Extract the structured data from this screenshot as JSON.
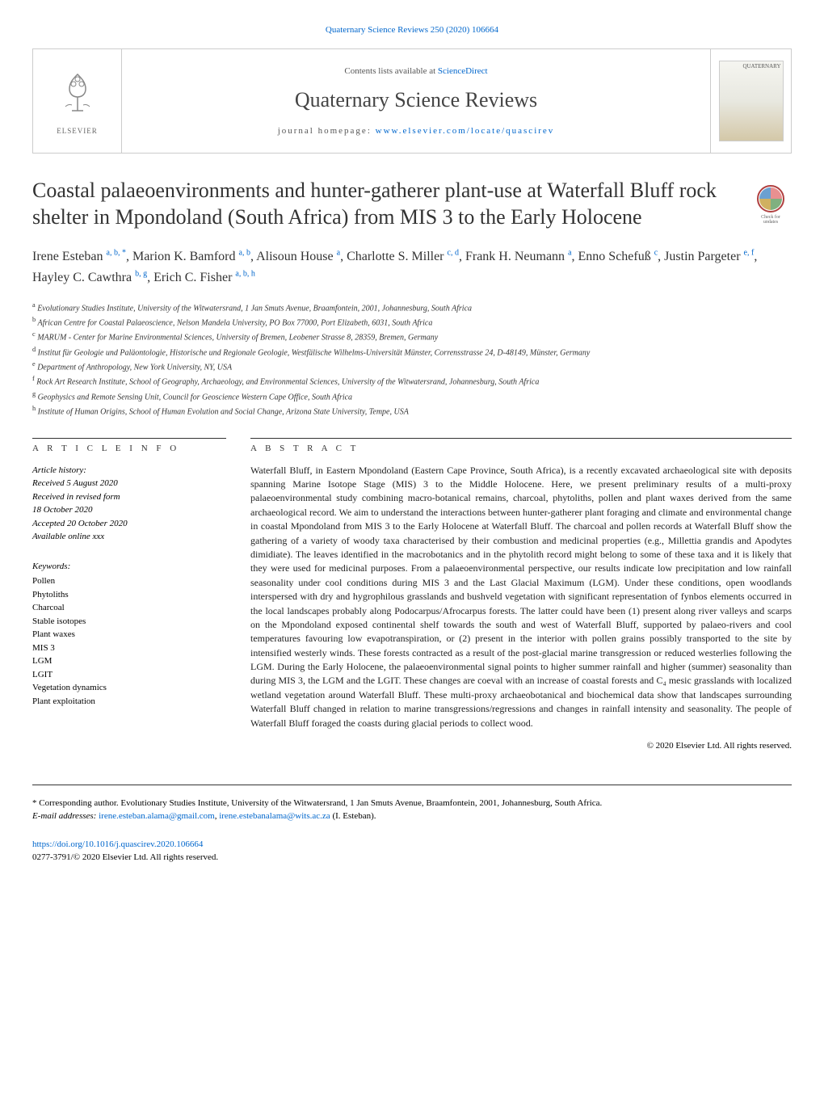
{
  "header": {
    "citation_link": "Quaternary Science Reviews 250 (2020) 106664",
    "contents_prefix": "Contents lists available at ",
    "contents_link": "ScienceDirect",
    "journal_title": "Quaternary Science Reviews",
    "homepage_prefix": "journal homepage: ",
    "homepage_link": "www.elsevier.com/locate/quascirev",
    "elsevier_label": "ELSEVIER",
    "cover_label": "QUATERNARY"
  },
  "paper": {
    "title": "Coastal palaeoenvironments and hunter-gatherer plant-use at Waterfall Bluff rock shelter in Mpondoland (South Africa) from MIS 3 to the Early Holocene",
    "check_updates_alt": "Check for updates"
  },
  "authors": [
    {
      "name": "Irene Esteban ",
      "sup": "a, b, *"
    },
    {
      "name": ", Marion K. Bamford ",
      "sup": "a, b"
    },
    {
      "name": ", Alisoun House ",
      "sup": "a"
    },
    {
      "name": ", Charlotte S. Miller ",
      "sup": "c, d"
    },
    {
      "name": ", Frank H. Neumann ",
      "sup": "a"
    },
    {
      "name": ", Enno Schefuß ",
      "sup": "c"
    },
    {
      "name": ", Justin Pargeter ",
      "sup": "e, f"
    },
    {
      "name": ", Hayley C. Cawthra ",
      "sup": "b, g"
    },
    {
      "name": ", Erich C. Fisher ",
      "sup": "a, b, h"
    }
  ],
  "affiliations": [
    {
      "sup": "a",
      "text": " Evolutionary Studies Institute, University of the Witwatersrand, 1 Jan Smuts Avenue, Braamfontein, 2001, Johannesburg, South Africa"
    },
    {
      "sup": "b",
      "text": " African Centre for Coastal Palaeoscience, Nelson Mandela University, PO Box 77000, Port Elizabeth, 6031, South Africa"
    },
    {
      "sup": "c",
      "text": " MARUM - Center for Marine Environmental Sciences, University of Bremen, Leobener Strasse 8, 28359, Bremen, Germany"
    },
    {
      "sup": "d",
      "text": " Institut für Geologie und Paläontologie, Historische und Regionale Geologie, Westfälische Wilhelms-Universität Münster, Corrensstrasse 24, D-48149, Münster, Germany"
    },
    {
      "sup": "e",
      "text": " Department of Anthropology, New York University, NY, USA"
    },
    {
      "sup": "f",
      "text": " Rock Art Research Institute, School of Geography, Archaeology, and Environmental Sciences, University of the Witwatersrand, Johannesburg, South Africa"
    },
    {
      "sup": "g",
      "text": " Geophysics and Remote Sensing Unit, Council for Geoscience Western Cape Office, South Africa"
    },
    {
      "sup": "h",
      "text": " Institute of Human Origins, School of Human Evolution and Social Change, Arizona State University, Tempe, USA"
    }
  ],
  "article_info": {
    "header": "A R T I C L E   I N F O",
    "history_label": "Article history:",
    "received": "Received 5 August 2020",
    "revised": "Received in revised form",
    "revised_date": "18 October 2020",
    "accepted": "Accepted 20 October 2020",
    "available": "Available online xxx"
  },
  "keywords": {
    "label": "Keywords:",
    "items": [
      "Pollen",
      "Phytoliths",
      "Charcoal",
      "Stable isotopes",
      "Plant waxes",
      "MIS 3",
      "LGM",
      "LGIT",
      "Vegetation dynamics",
      "Plant exploitation"
    ]
  },
  "abstract": {
    "header": "A B S T R A C T",
    "text": "Waterfall Bluff, in Eastern Mpondoland (Eastern Cape Province, South Africa), is a recently excavated archaeological site with deposits spanning Marine Isotope Stage (MIS) 3 to the Middle Holocene. Here, we present preliminary results of a multi-proxy palaeoenvironmental study combining macro-botanical remains, charcoal, phytoliths, pollen and plant waxes derived from the same archaeological record. We aim to understand the interactions between hunter-gatherer plant foraging and climate and environmental change in coastal Mpondoland from MIS 3 to the Early Holocene at Waterfall Bluff. The charcoal and pollen records at Waterfall Bluff show the gathering of a variety of woody taxa characterised by their combustion and medicinal properties (e.g., Millettia grandis and Apodytes dimidiate). The leaves identified in the macrobotanics and in the phytolith record might belong to some of these taxa and it is likely that they were used for medicinal purposes. From a palaeoenvironmental perspective, our results indicate low precipitation and low rainfall seasonality under cool conditions during MIS 3 and the Last Glacial Maximum (LGM). Under these conditions, open woodlands interspersed with dry and hygrophilous grasslands and bushveld vegetation with significant representation of fynbos elements occurred in the local landscapes probably along Podocarpus/Afrocarpus forests. The latter could have been (1) present along river valleys and scarps on the Mpondoland exposed continental shelf towards the south and west of Waterfall Bluff, supported by palaeo-rivers and cool temperatures favouring low evapotranspiration, or (2) present in the interior with pollen grains possibly transported to the site by intensified westerly winds. These forests contracted as a result of the post-glacial marine transgression or reduced westerlies following the LGM. During the Early Holocene, the palaeoenvironmental signal points to higher summer rainfall and higher (summer) seasonality than during MIS 3, the LGM and the LGIT. These changes are coeval with an increase of coastal forests and C₄ mesic grasslands with localized wetland vegetation around Waterfall Bluff. These multi-proxy archaeobotanical and biochemical data show that landscapes surrounding Waterfall Bluff changed in relation to marine transgressions/regressions and changes in rainfall intensity and seasonality. The people of Waterfall Bluff foraged the coasts during glacial periods to collect wood.",
    "copyright": "© 2020 Elsevier Ltd. All rights reserved."
  },
  "footnote": {
    "corresponding": "* Corresponding author. Evolutionary Studies Institute, University of the Witwatersrand, 1 Jan Smuts Avenue, Braamfontein, 2001, Johannesburg, South Africa.",
    "email_label": "E-mail addresses: ",
    "email1": "irene.esteban.alama@gmail.com",
    "email_sep": ", ",
    "email2": "irene.estebanalama@wits.ac.za",
    "email_suffix": " (I. Esteban)."
  },
  "footer": {
    "doi": "https://doi.org/10.1016/j.quascirev.2020.106664",
    "issn": "0277-3791/© 2020 Elsevier Ltd. All rights reserved."
  },
  "colors": {
    "link": "#0066cc",
    "text": "#222222",
    "border": "#cccccc"
  }
}
